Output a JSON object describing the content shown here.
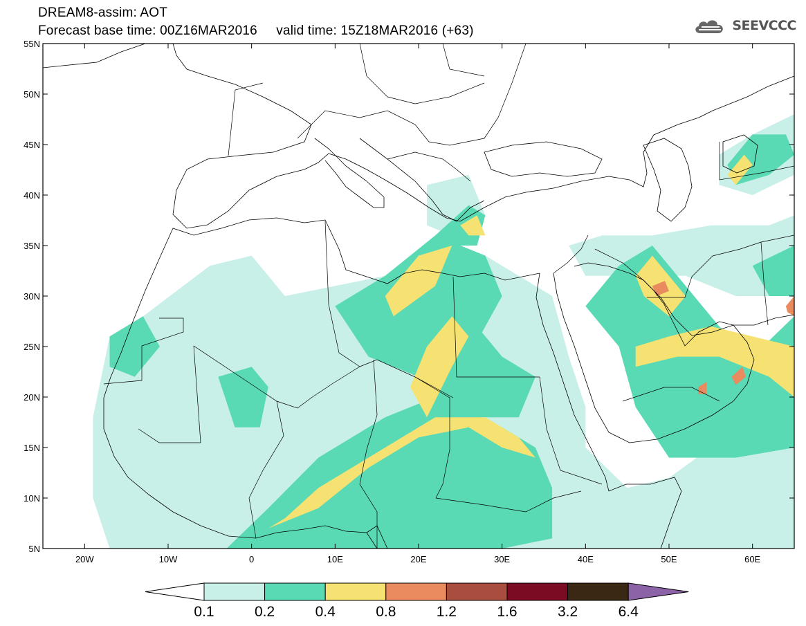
{
  "header": {
    "line1": "DREAM8-assim: AOT",
    "line2": "Forecast base time: 00Z16MAR2016     valid time: 15Z18MAR2016 (+63)",
    "logo_text": "SEEVCCC",
    "logo_icon": "cloud-icon"
  },
  "map": {
    "lon_range": [
      -25,
      65
    ],
    "lat_range": [
      5,
      55
    ],
    "lat_ticks": [
      {
        "value": 55,
        "label": "55N"
      },
      {
        "value": 50,
        "label": "50N"
      },
      {
        "value": 45,
        "label": "45N"
      },
      {
        "value": 40,
        "label": "40N"
      },
      {
        "value": 35,
        "label": "35N"
      },
      {
        "value": 30,
        "label": "30N"
      },
      {
        "value": 25,
        "label": "25N"
      },
      {
        "value": 20,
        "label": "20N"
      },
      {
        "value": 15,
        "label": "15N"
      },
      {
        "value": 10,
        "label": "10N"
      },
      {
        "value": 5,
        "label": "5N"
      }
    ],
    "lon_ticks": [
      {
        "value": -20,
        "label": "20W"
      },
      {
        "value": -10,
        "label": "10W"
      },
      {
        "value": 0,
        "label": "0"
      },
      {
        "value": 10,
        "label": "10E"
      },
      {
        "value": 20,
        "label": "20E"
      },
      {
        "value": 30,
        "label": "30E"
      },
      {
        "value": 40,
        "label": "40E"
      },
      {
        "value": 50,
        "label": "50E"
      },
      {
        "value": 60,
        "label": "60E"
      }
    ]
  },
  "legend": {
    "colors": [
      "#c8f0e8",
      "#5ad9b5",
      "#f5e272",
      "#e98a5f",
      "#a94d3e",
      "#7a0b23",
      "#3b2812"
    ],
    "arrow_left_color": "#ffffff",
    "arrow_right_color": "#8b63a6",
    "labels": [
      "0.1",
      "0.2",
      "0.4",
      "0.8",
      "1.2",
      "1.6",
      "3.2",
      "6.4"
    ]
  },
  "chart_data": {
    "type": "heatmap",
    "variable": "AOT",
    "levels": [
      0.1,
      0.2,
      0.4,
      0.8,
      1.2,
      1.6,
      3.2,
      6.4
    ],
    "level_colors": [
      "#c8f0e8",
      "#5ad9b5",
      "#f5e272",
      "#e98a5f",
      "#a94d3e",
      "#7a0b23",
      "#3b2812"
    ],
    "regions": [
      {
        "level": 0,
        "polygon": [
          [
            -17,
            26
          ],
          [
            -13,
            28
          ],
          [
            -5,
            33
          ],
          [
            0,
            34
          ],
          [
            4,
            30
          ],
          [
            10,
            31
          ],
          [
            16,
            32
          ],
          [
            22,
            36
          ],
          [
            28,
            34
          ],
          [
            32,
            32
          ],
          [
            36,
            30
          ],
          [
            38,
            24
          ],
          [
            40,
            19
          ],
          [
            40,
            15
          ],
          [
            45,
            11
          ],
          [
            50,
            12
          ],
          [
            60,
            18
          ],
          [
            65,
            20
          ],
          [
            65,
            5
          ],
          [
            -17,
            5
          ],
          [
            -19,
            10
          ],
          [
            -19,
            18
          ]
        ]
      },
      {
        "level": 0,
        "polygon": [
          [
            38,
            35
          ],
          [
            42,
            36
          ],
          [
            48,
            36
          ],
          [
            55,
            37
          ],
          [
            62,
            37
          ],
          [
            65,
            38
          ],
          [
            65,
            30
          ],
          [
            58,
            30
          ],
          [
            52,
            32
          ],
          [
            46,
            32
          ],
          [
            40,
            32
          ]
        ]
      },
      {
        "level": 0,
        "polygon": [
          [
            56,
            44
          ],
          [
            60,
            46
          ],
          [
            65,
            48
          ],
          [
            65,
            42
          ],
          [
            60,
            40
          ],
          [
            56,
            41
          ]
        ]
      },
      {
        "level": 0,
        "polygon": [
          [
            21,
            41
          ],
          [
            26,
            42
          ],
          [
            28,
            38
          ],
          [
            24,
            36
          ],
          [
            21,
            37
          ]
        ]
      },
      {
        "level": 1,
        "polygon": [
          [
            -3,
            5
          ],
          [
            2,
            9
          ],
          [
            8,
            14
          ],
          [
            16,
            18
          ],
          [
            22,
            20
          ],
          [
            30,
            17
          ],
          [
            34,
            15
          ],
          [
            36,
            11
          ],
          [
            36,
            6
          ],
          [
            30,
            5
          ]
        ]
      },
      {
        "level": 1,
        "polygon": [
          [
            10,
            29
          ],
          [
            16,
            32
          ],
          [
            22,
            36
          ],
          [
            28,
            34
          ],
          [
            30,
            30
          ],
          [
            26,
            24
          ],
          [
            20,
            22
          ],
          [
            14,
            24
          ]
        ]
      },
      {
        "level": 1,
        "polygon": [
          [
            22,
            30
          ],
          [
            26,
            28
          ],
          [
            30,
            24
          ],
          [
            34,
            22
          ],
          [
            32,
            18
          ],
          [
            24,
            18
          ],
          [
            20,
            22
          ]
        ]
      },
      {
        "level": 1,
        "polygon": [
          [
            44,
            33
          ],
          [
            48,
            35
          ],
          [
            53,
            30
          ],
          [
            56,
            27
          ],
          [
            60,
            24
          ],
          [
            65,
            28
          ],
          [
            65,
            15
          ],
          [
            58,
            14
          ],
          [
            50,
            14
          ],
          [
            46,
            19
          ],
          [
            44,
            25
          ],
          [
            40,
            29
          ]
        ]
      },
      {
        "level": 1,
        "polygon": [
          [
            -17,
            26
          ],
          [
            -13,
            28
          ],
          [
            -11,
            25
          ],
          [
            -14,
            22
          ],
          [
            -17,
            23
          ]
        ]
      },
      {
        "level": 1,
        "polygon": [
          [
            22,
            36
          ],
          [
            26,
            39
          ],
          [
            28,
            38
          ],
          [
            27,
            35
          ],
          [
            24,
            35
          ]
        ]
      },
      {
        "level": 1,
        "polygon": [
          [
            57,
            43
          ],
          [
            60,
            46
          ],
          [
            64,
            46
          ],
          [
            65,
            44
          ],
          [
            62,
            42
          ],
          [
            58,
            41
          ]
        ]
      },
      {
        "level": 1,
        "polygon": [
          [
            60,
            33
          ],
          [
            65,
            35
          ],
          [
            65,
            30
          ],
          [
            62,
            30
          ]
        ]
      },
      {
        "level": 1,
        "polygon": [
          [
            -4,
            22
          ],
          [
            0,
            23
          ],
          [
            2,
            21
          ],
          [
            1,
            17
          ],
          [
            -2,
            17
          ]
        ]
      },
      {
        "level": 2,
        "polygon": [
          [
            2,
            7
          ],
          [
            8,
            9
          ],
          [
            14,
            13
          ],
          [
            20,
            16
          ],
          [
            26,
            17
          ],
          [
            30,
            15
          ],
          [
            34,
            14
          ],
          [
            32,
            16
          ],
          [
            28,
            18
          ],
          [
            22,
            18
          ],
          [
            14,
            14
          ],
          [
            8,
            11
          ],
          [
            4,
            8
          ]
        ]
      },
      {
        "level": 2,
        "polygon": [
          [
            17,
            28
          ],
          [
            22,
            31
          ],
          [
            24,
            35
          ],
          [
            20,
            34
          ],
          [
            16,
            30
          ]
        ]
      },
      {
        "level": 2,
        "polygon": [
          [
            21,
            18
          ],
          [
            24,
            23
          ],
          [
            26,
            26
          ],
          [
            24,
            28
          ],
          [
            21,
            25
          ],
          [
            19,
            21
          ]
        ]
      },
      {
        "level": 2,
        "polygon": [
          [
            46,
            23
          ],
          [
            51,
            24
          ],
          [
            56,
            24
          ],
          [
            62,
            22
          ],
          [
            65,
            20
          ],
          [
            65,
            25
          ],
          [
            60,
            26
          ],
          [
            55,
            27
          ],
          [
            50,
            26
          ],
          [
            46,
            25
          ]
        ]
      },
      {
        "level": 2,
        "polygon": [
          [
            46,
            32
          ],
          [
            48,
            34
          ],
          [
            52,
            30
          ],
          [
            50,
            28
          ],
          [
            47,
            30
          ]
        ]
      },
      {
        "level": 2,
        "polygon": [
          [
            57,
            42
          ],
          [
            59,
            44
          ],
          [
            60,
            43
          ],
          [
            58,
            41
          ]
        ]
      },
      {
        "level": 2,
        "polygon": [
          [
            25,
            37
          ],
          [
            27,
            38
          ],
          [
            28,
            36
          ],
          [
            26,
            36
          ]
        ]
      },
      {
        "level": 3,
        "polygon": [
          [
            48,
            31
          ],
          [
            49.5,
            31.5
          ],
          [
            50,
            30.5
          ],
          [
            48.5,
            30
          ]
        ]
      },
      {
        "level": 3,
        "polygon": [
          [
            53.5,
            21
          ],
          [
            54.5,
            21.5
          ],
          [
            54.5,
            20.3
          ],
          [
            53.5,
            20.3
          ]
        ]
      },
      {
        "level": 3,
        "polygon": [
          [
            57.5,
            22
          ],
          [
            58.8,
            23
          ],
          [
            59.2,
            22
          ],
          [
            58,
            21.2
          ]
        ]
      },
      {
        "level": 3,
        "polygon": [
          [
            64,
            29
          ],
          [
            65,
            30
          ],
          [
            65,
            28
          ],
          [
            64.2,
            28.4
          ]
        ]
      }
    ]
  }
}
